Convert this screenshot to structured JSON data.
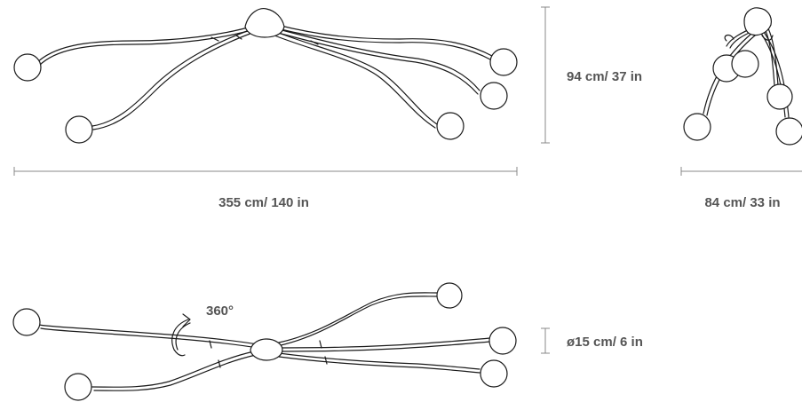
{
  "dimensions": {
    "width_label": "355 cm/ 140 in",
    "height_label": "94 cm/ 37 in",
    "depth_label": "84 cm/ 33 in",
    "diameter_label": "ø15 cm/ 6 in",
    "rotation_label": "360°"
  },
  "colors": {
    "line": "#1a1a1a",
    "dimension_line": "#888888",
    "label_text": "#555555",
    "background": "#ffffff"
  }
}
